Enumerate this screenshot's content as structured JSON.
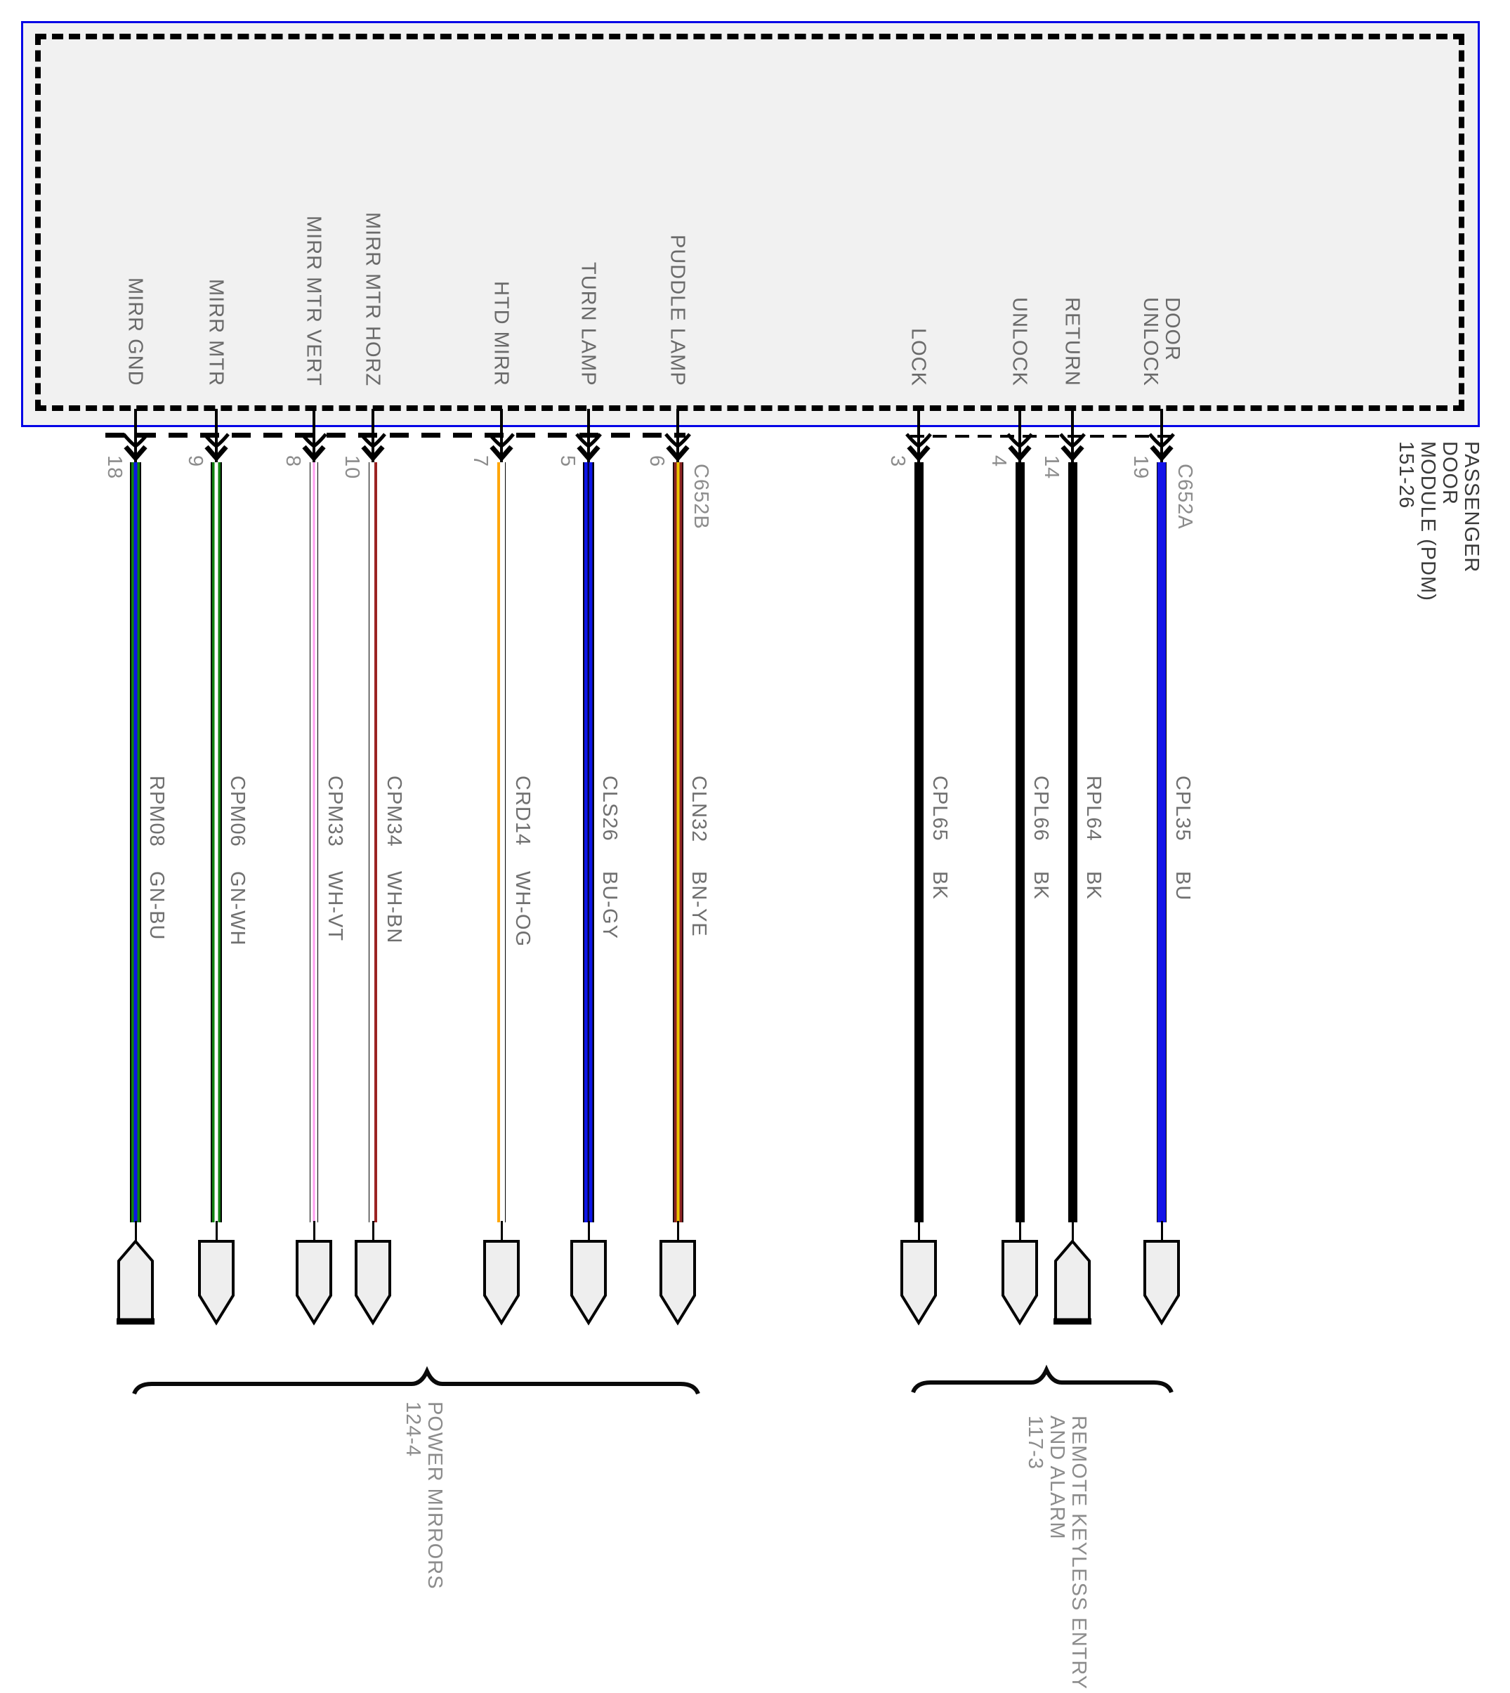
{
  "module": {
    "label": "PASSENGER\nDOOR\nMODULE (PDM)\n151-26",
    "pins": [
      {
        "number": "18",
        "function": "MIRR GND",
        "circuit": "RPM08",
        "color_code": "GN-BU",
        "connector": "",
        "stripes": [
          [
            "#000000",
            2
          ],
          [
            "#108210",
            3.5
          ],
          [
            "#0d15e8",
            5
          ],
          [
            "#108210",
            3.5
          ],
          [
            "#000000",
            2
          ]
        ],
        "terminal": "up"
      },
      {
        "number": "9",
        "function": "MIRR MTR",
        "circuit": "CPM06",
        "color_code": "GN-WH",
        "connector": "",
        "stripes": [
          [
            "#000000",
            2
          ],
          [
            "#108210",
            3.5
          ],
          [
            "#ffffff",
            5
          ],
          [
            "#108210",
            3.5
          ],
          [
            "#000000",
            2
          ]
        ],
        "terminal": "down"
      },
      {
        "number": "8",
        "function": "MIRR MTR VERT",
        "circuit": "CPM33",
        "color_code": "WH-VT",
        "connector": "",
        "stripes": [
          [
            "#000000",
            1
          ],
          [
            "#ffffff",
            3.5
          ],
          [
            "#ff9ef0",
            3
          ],
          [
            "#ffffff",
            3.5
          ],
          [
            "#000000",
            1
          ]
        ],
        "terminal": "down"
      },
      {
        "number": "10",
        "function": "MIRR MTR HORZ",
        "circuit": "CPM34",
        "color_code": "WH-BN",
        "connector": "",
        "stripes": [
          [
            "#000000",
            1
          ],
          [
            "#ffffff",
            7
          ],
          [
            "#9b2423",
            4
          ]
        ],
        "terminal": "down"
      },
      {
        "number": "7",
        "function": "HTD MIRR",
        "circuit": "CRD14",
        "color_code": "WH-OG",
        "connector": "",
        "stripes": [
          [
            "#ffa60a",
            4
          ],
          [
            "#ffffff",
            7
          ],
          [
            "#000000",
            1
          ]
        ],
        "terminal": "down"
      },
      {
        "number": "5",
        "function": "TURN LAMP",
        "circuit": "CLS26",
        "color_code": "BU-GY",
        "connector": "",
        "stripes": [
          [
            "#000000",
            2
          ],
          [
            "#0d15e8",
            4.5
          ],
          [
            "#00004d",
            2.5
          ],
          [
            "#0d15e8",
            4.5
          ],
          [
            "#000000",
            2
          ]
        ],
        "terminal": "down"
      },
      {
        "number": "6",
        "function": "PUDDLE LAMP",
        "circuit": "CLN32",
        "color_code": "BN-YE",
        "connector": "C652B",
        "stripes": [
          [
            "#000000",
            1.5
          ],
          [
            "#8b2323",
            4
          ],
          [
            "#edc400",
            4
          ],
          [
            "#8b2323",
            4
          ],
          [
            "#000000",
            1.5
          ]
        ],
        "terminal": "down"
      },
      {
        "number": "3",
        "function": "LOCK",
        "circuit": "CPL65",
        "color_code": "BK",
        "connector": "",
        "stripes": [
          [
            "#000000",
            13
          ]
        ],
        "terminal": "down"
      },
      {
        "number": "4",
        "function": "UNLOCK",
        "circuit": "CPL66",
        "color_code": "BK",
        "connector": "",
        "stripes": [
          [
            "#000000",
            13
          ]
        ],
        "terminal": "down"
      },
      {
        "number": "14",
        "function": "RETURN",
        "circuit": "RPL64",
        "color_code": "BK",
        "connector": "",
        "stripes": [
          [
            "#000000",
            13
          ]
        ],
        "terminal": "up"
      },
      {
        "number": "19",
        "function": "DOOR\nUNLOCK",
        "circuit": "CPL35",
        "color_code": "BU",
        "connector": "C652A",
        "stripes": [
          [
            "#000000",
            1
          ],
          [
            "#1414e8",
            12
          ],
          [
            "#000000",
            1
          ]
        ],
        "terminal": "down"
      }
    ]
  },
  "groups": [
    {
      "label": "POWER MIRRORS\n124-4"
    },
    {
      "label": "REMOTE KEYLESS ENTRY\nAND ALARM\n117-3"
    }
  ],
  "colors": {
    "box_border": "#0202e6",
    "box_fill": "#f1f1f1",
    "outline_dash": "#000000",
    "green": "#108210",
    "blue": "#0d15e8",
    "brown": "#8b2323",
    "yellow": "#edc400",
    "orange": "#ffa60a",
    "violet": "#ff9ef0",
    "black": "#000000",
    "white": "#ffffff",
    "terminal_fill": "#eeeeee"
  }
}
